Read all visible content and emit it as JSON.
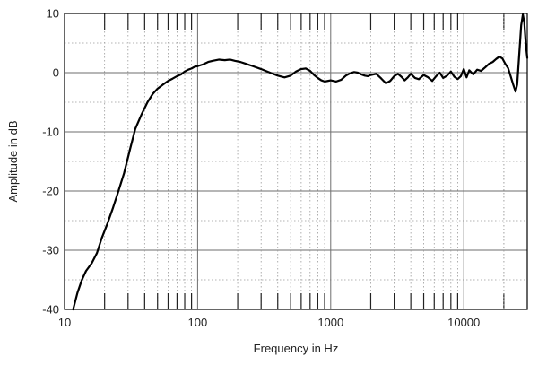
{
  "chart_data": {
    "type": "line",
    "title": "",
    "xlabel": "Frequency in Hz",
    "ylabel": "Amplitude in dB",
    "x_scale": "log",
    "xlim": [
      10,
      30000
    ],
    "ylim": [
      -40,
      10
    ],
    "x_ticks": [
      {
        "value": 10,
        "label": "10"
      },
      {
        "value": 100,
        "label": "100"
      },
      {
        "value": 1000,
        "label": "1000"
      },
      {
        "value": 10000,
        "label": "10000"
      }
    ],
    "y_ticks": [
      {
        "value": 10,
        "label": "10"
      },
      {
        "value": 0,
        "label": "0"
      },
      {
        "value": -10,
        "label": "-10"
      },
      {
        "value": -20,
        "label": "-20"
      },
      {
        "value": -30,
        "label": "-30"
      },
      {
        "value": -40,
        "label": "-40"
      }
    ],
    "grid": true,
    "legend": "none",
    "colors": {
      "line": "#000000",
      "grid": "#9a9a9a",
      "major_grid": "#6e6e6e",
      "axes": "#000000"
    },
    "series": [
      {
        "values": [
          [
            11.6,
            -40
          ],
          [
            12.5,
            -37.2
          ],
          [
            13.5,
            -35
          ],
          [
            14.5,
            -33.5
          ],
          [
            16,
            -32.2
          ],
          [
            17.5,
            -30.5
          ],
          [
            19,
            -28
          ],
          [
            21,
            -25.5
          ],
          [
            23,
            -23
          ],
          [
            25,
            -20.5
          ],
          [
            28,
            -17
          ],
          [
            31,
            -13
          ],
          [
            34,
            -9.5
          ],
          [
            38,
            -7
          ],
          [
            42,
            -5
          ],
          [
            46,
            -3.6
          ],
          [
            50,
            -2.7
          ],
          [
            55,
            -2.0
          ],
          [
            60,
            -1.4
          ],
          [
            65,
            -1.0
          ],
          [
            70,
            -0.6
          ],
          [
            75,
            -0.3
          ],
          [
            80,
            0.2
          ],
          [
            85,
            0.5
          ],
          [
            90,
            0.7
          ],
          [
            95,
            1.0
          ],
          [
            100,
            1.1
          ],
          [
            110,
            1.4
          ],
          [
            120,
            1.8
          ],
          [
            130,
            2.0
          ],
          [
            145,
            2.2
          ],
          [
            160,
            2.1
          ],
          [
            175,
            2.2
          ],
          [
            190,
            2.0
          ],
          [
            210,
            1.8
          ],
          [
            230,
            1.5
          ],
          [
            260,
            1.1
          ],
          [
            300,
            0.6
          ],
          [
            350,
            0.0
          ],
          [
            400,
            -0.5
          ],
          [
            450,
            -0.8
          ],
          [
            500,
            -0.5
          ],
          [
            550,
            0.2
          ],
          [
            600,
            0.6
          ],
          [
            650,
            0.7
          ],
          [
            700,
            0.3
          ],
          [
            750,
            -0.4
          ],
          [
            800,
            -0.9
          ],
          [
            850,
            -1.3
          ],
          [
            900,
            -1.5
          ],
          [
            950,
            -1.4
          ],
          [
            1000,
            -1.3
          ],
          [
            1100,
            -1.5
          ],
          [
            1200,
            -1.2
          ],
          [
            1300,
            -0.5
          ],
          [
            1400,
            -0.1
          ],
          [
            1500,
            0.1
          ],
          [
            1600,
            0.0
          ],
          [
            1700,
            -0.3
          ],
          [
            1800,
            -0.5
          ],
          [
            1900,
            -0.6
          ],
          [
            2000,
            -0.4
          ],
          [
            2200,
            -0.2
          ],
          [
            2400,
            -1.0
          ],
          [
            2600,
            -1.8
          ],
          [
            2800,
            -1.4
          ],
          [
            3000,
            -0.6
          ],
          [
            3200,
            -0.2
          ],
          [
            3400,
            -0.7
          ],
          [
            3600,
            -1.3
          ],
          [
            3800,
            -0.8
          ],
          [
            4000,
            -0.2
          ],
          [
            4300,
            -0.9
          ],
          [
            4600,
            -1.1
          ],
          [
            5000,
            -0.4
          ],
          [
            5400,
            -0.8
          ],
          [
            5800,
            -1.4
          ],
          [
            6200,
            -0.6
          ],
          [
            6600,
            0.0
          ],
          [
            7000,
            -0.9
          ],
          [
            7500,
            -0.5
          ],
          [
            8000,
            0.2
          ],
          [
            8500,
            -0.7
          ],
          [
            9000,
            -1.1
          ],
          [
            9500,
            -0.6
          ],
          [
            10000,
            0.6
          ],
          [
            10500,
            -0.8
          ],
          [
            11000,
            0.4
          ],
          [
            11800,
            -0.3
          ],
          [
            12600,
            0.5
          ],
          [
            13500,
            0.3
          ],
          [
            14500,
            0.9
          ],
          [
            15500,
            1.5
          ],
          [
            16500,
            1.8
          ],
          [
            17500,
            2.3
          ],
          [
            18500,
            2.7
          ],
          [
            19500,
            2.4
          ],
          [
            20500,
            1.5
          ],
          [
            21500,
            0.8
          ],
          [
            22500,
            -0.6
          ],
          [
            23500,
            -2.0
          ],
          [
            24500,
            -3.2
          ],
          [
            25200,
            -2.0
          ],
          [
            26000,
            2.5
          ],
          [
            27000,
            8.0
          ],
          [
            27800,
            9.8
          ],
          [
            28500,
            8.5
          ],
          [
            29200,
            5.0
          ],
          [
            30000,
            2.5
          ]
        ]
      }
    ]
  }
}
